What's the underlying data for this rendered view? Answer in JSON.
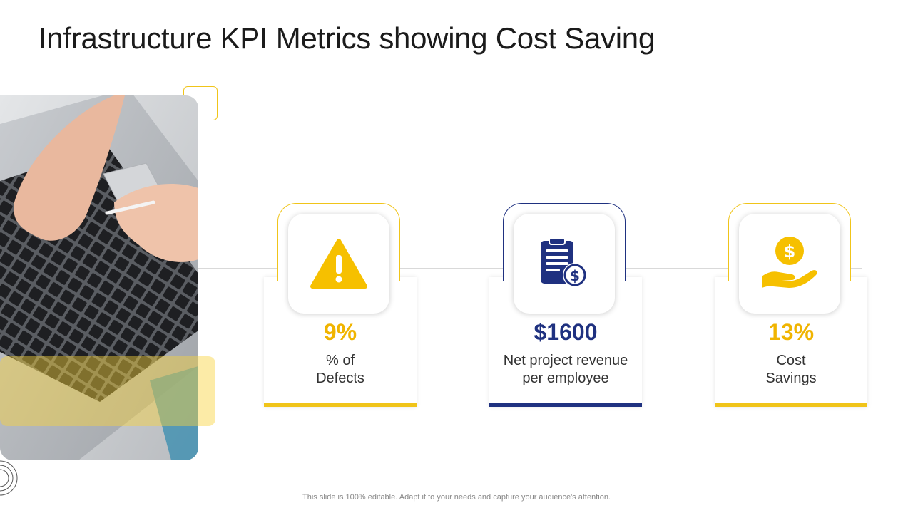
{
  "slide": {
    "title": "Infrastructure KPI Metrics showing Cost Saving",
    "footer": "This slide is 100% editable. Adapt it to your needs and capture your audience's attention."
  },
  "kpis": [
    {
      "value": "9%",
      "label_line1": "% of",
      "label_line2": "Defects",
      "icon": "warning-icon",
      "accent": "#F0B400"
    },
    {
      "value": "$1600",
      "label_line1": "Net project revenue",
      "label_line2": "per employee",
      "icon": "invoice-dollar-icon",
      "accent": "#1F3180"
    },
    {
      "value": "13%",
      "label_line1": "Cost",
      "label_line2": "Savings",
      "icon": "money-hand-icon",
      "accent": "#F0B400"
    }
  ],
  "colors": {
    "gold": "#F0C419",
    "navy": "#1F3180"
  },
  "image": {
    "subject": "laptop-typing-photo"
  }
}
